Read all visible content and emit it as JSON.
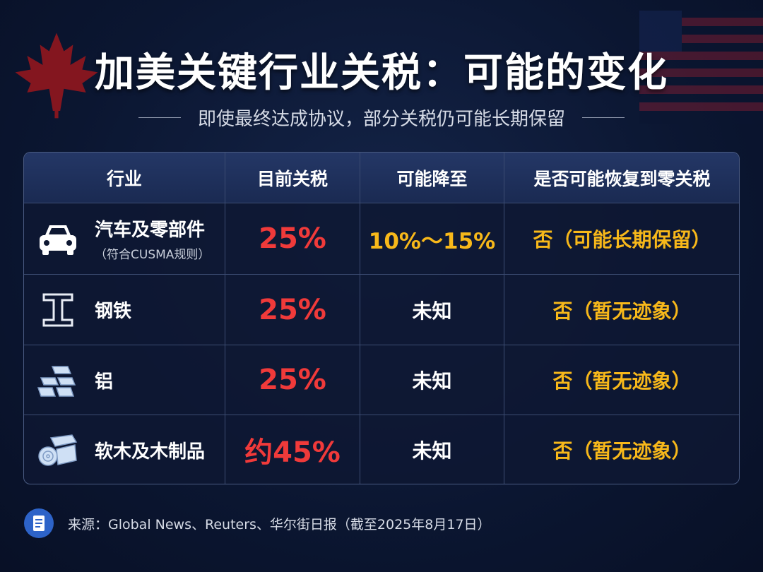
{
  "header": {
    "title": "加美关键行业关税：可能的变化",
    "subtitle": "即使最终达成协议，部分关税仍可能长期保留"
  },
  "table": {
    "columns": [
      "行业",
      "目前关税",
      "可能降至",
      "是否可能恢复到零关税"
    ],
    "rows": [
      {
        "industry": "汽车及零部件",
        "note": "（符合CUSMA规则）",
        "current": "25%",
        "possible": "10%～15%",
        "zero": "否（可能长期保留）"
      },
      {
        "industry": "钢铁",
        "current": "25%",
        "possible": "未知",
        "zero": "否（暂无迹象）"
      },
      {
        "industry": "铝",
        "current": "25%",
        "possible": "未知",
        "zero": "否（暂无迹象）"
      },
      {
        "industry": "软木及木制品",
        "current": "约45%",
        "possible": "未知",
        "zero": "否（暂无迹象）"
      }
    ]
  },
  "footer": {
    "source": "来源：Global News、Reuters、华尔街日报（截至2025年8月17日）"
  }
}
